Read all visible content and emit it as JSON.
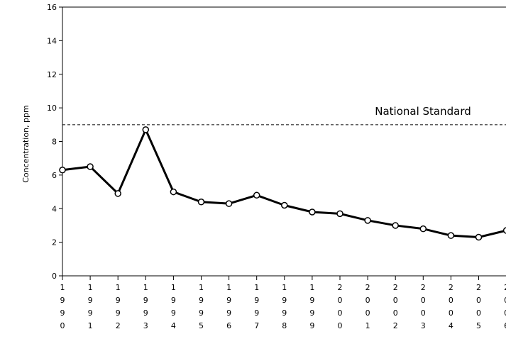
{
  "chart_data": {
    "type": "line",
    "title": "",
    "ylabel": "Concentration, ppm",
    "xlabel": "",
    "ylim": [
      0,
      16
    ],
    "yticks": [
      "0",
      "2",
      "4",
      "6",
      "8",
      "10",
      "12",
      "14",
      "16"
    ],
    "categories": [
      "1990",
      "1991",
      "1992",
      "1993",
      "1994",
      "1995",
      "1996",
      "1997",
      "1998",
      "1999",
      "2000",
      "2001",
      "2002",
      "2003",
      "2004",
      "2005",
      "2006"
    ],
    "series": [
      {
        "values": [
          6.3,
          6.5,
          4.9,
          8.7,
          5.0,
          4.4,
          4.3,
          4.8,
          4.2,
          3.8,
          3.7,
          3.3,
          3.0,
          2.8,
          2.4,
          2.3,
          2.7
        ]
      }
    ],
    "reference_line": {
      "value": 9,
      "label": "National Standard",
      "style": "dashed"
    },
    "grid": false,
    "marker": "open-circle",
    "line_color": "#000000"
  }
}
